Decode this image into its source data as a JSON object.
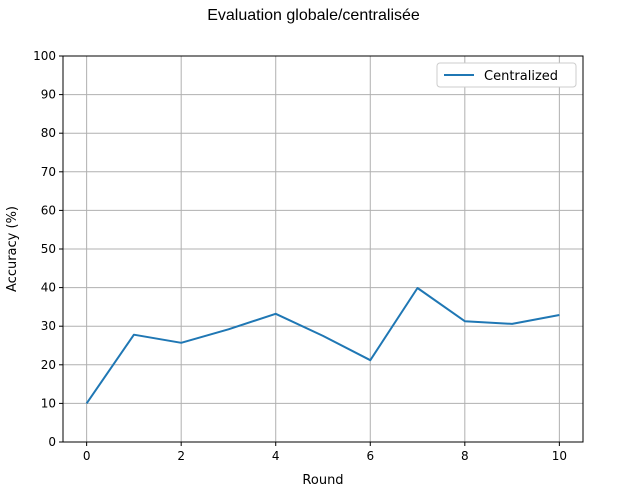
{
  "chart_data": {
    "type": "line",
    "title": "Evaluation globale/centralisée",
    "xlabel": "Round",
    "ylabel": "Accuracy (%)",
    "xlim": [
      -0.5,
      10.5
    ],
    "ylim": [
      0,
      100
    ],
    "xticks": [
      0,
      2,
      4,
      6,
      8,
      10
    ],
    "yticks": [
      0,
      10,
      20,
      30,
      40,
      50,
      60,
      70,
      80,
      90,
      100
    ],
    "grid": true,
    "legend_position": "top-right",
    "x": [
      0,
      1,
      2,
      3,
      4,
      5,
      6,
      7,
      8,
      9,
      10
    ],
    "series": [
      {
        "name": "Centralized",
        "color": "#1f77b4",
        "values": [
          10.0,
          27.8,
          25.7,
          29.2,
          33.2,
          27.5,
          21.2,
          39.9,
          31.3,
          30.6,
          32.9
        ]
      }
    ]
  }
}
